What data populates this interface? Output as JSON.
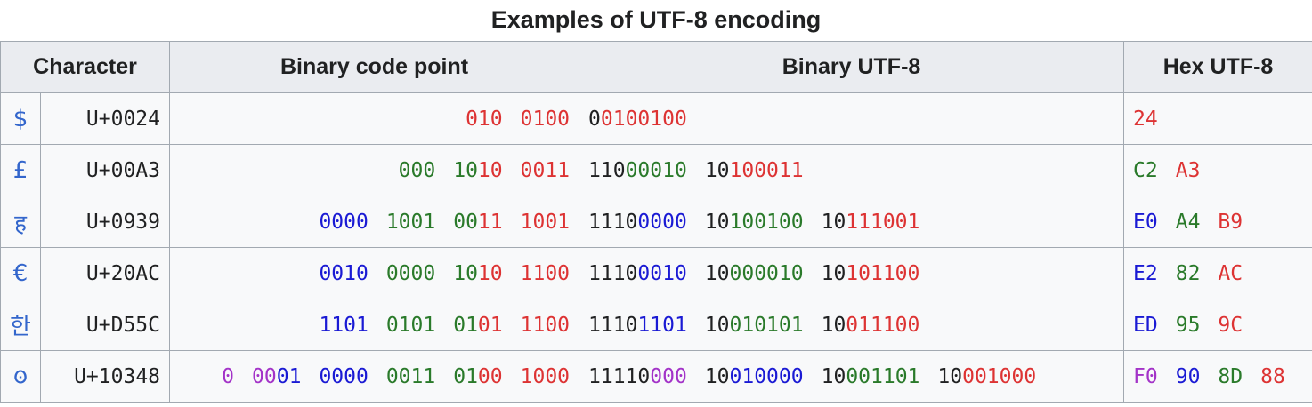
{
  "caption": "Examples of UTF-8 encoding",
  "headers": [
    "Character",
    "Binary code point",
    "Binary UTF-8",
    "Hex UTF-8"
  ],
  "colors": {
    "black": "#202122",
    "red": "#dd3333",
    "green": "#2a7a2a",
    "blue": "#1a1ad4",
    "purple": "#a333c8",
    "header_bg": "#eaecf0",
    "cell_bg": "#f8f9fa",
    "border": "#a2a9b1",
    "link": "#3366cc"
  },
  "rows": [
    {
      "char": "$",
      "codepoint": "U+0024",
      "binary_code_point": [
        [
          [
            "red",
            "010"
          ]
        ],
        [
          [
            "red",
            "0100"
          ]
        ]
      ],
      "binary_utf8": [
        [
          [
            "black",
            "0"
          ],
          [
            "red",
            "0100100"
          ]
        ]
      ],
      "hex_utf8": [
        [
          [
            "red",
            "24"
          ]
        ]
      ]
    },
    {
      "char": "£",
      "codepoint": "U+00A3",
      "binary_code_point": [
        [
          [
            "green",
            "000"
          ]
        ],
        [
          [
            "green",
            "10"
          ],
          [
            "red",
            "10"
          ]
        ],
        [
          [
            "red",
            "0011"
          ]
        ]
      ],
      "binary_utf8": [
        [
          [
            "black",
            "110"
          ],
          [
            "green",
            "00010"
          ]
        ],
        [
          [
            "black",
            "10"
          ],
          [
            "red",
            "100011"
          ]
        ]
      ],
      "hex_utf8": [
        [
          [
            "green",
            "C2"
          ]
        ],
        [
          [
            "red",
            "A3"
          ]
        ]
      ]
    },
    {
      "char": "ह",
      "codepoint": "U+0939",
      "binary_code_point": [
        [
          [
            "blue",
            "0000"
          ]
        ],
        [
          [
            "green",
            "1001"
          ]
        ],
        [
          [
            "green",
            "00"
          ],
          [
            "red",
            "11"
          ]
        ],
        [
          [
            "red",
            "1001"
          ]
        ]
      ],
      "binary_utf8": [
        [
          [
            "black",
            "1110"
          ],
          [
            "blue",
            "0000"
          ]
        ],
        [
          [
            "black",
            "10"
          ],
          [
            "green",
            "100100"
          ]
        ],
        [
          [
            "black",
            "10"
          ],
          [
            "red",
            "111001"
          ]
        ]
      ],
      "hex_utf8": [
        [
          [
            "blue",
            "E0"
          ]
        ],
        [
          [
            "green",
            "A4"
          ]
        ],
        [
          [
            "red",
            "B9"
          ]
        ]
      ]
    },
    {
      "char": "€",
      "codepoint": "U+20AC",
      "binary_code_point": [
        [
          [
            "blue",
            "0010"
          ]
        ],
        [
          [
            "green",
            "0000"
          ]
        ],
        [
          [
            "green",
            "10"
          ],
          [
            "red",
            "10"
          ]
        ],
        [
          [
            "red",
            "1100"
          ]
        ]
      ],
      "binary_utf8": [
        [
          [
            "black",
            "1110"
          ],
          [
            "blue",
            "0010"
          ]
        ],
        [
          [
            "black",
            "10"
          ],
          [
            "green",
            "000010"
          ]
        ],
        [
          [
            "black",
            "10"
          ],
          [
            "red",
            "101100"
          ]
        ]
      ],
      "hex_utf8": [
        [
          [
            "blue",
            "E2"
          ]
        ],
        [
          [
            "green",
            "82"
          ]
        ],
        [
          [
            "red",
            "AC"
          ]
        ]
      ]
    },
    {
      "char": "한",
      "codepoint": "U+D55C",
      "binary_code_point": [
        [
          [
            "blue",
            "1101"
          ]
        ],
        [
          [
            "green",
            "0101"
          ]
        ],
        [
          [
            "green",
            "01"
          ],
          [
            "red",
            "01"
          ]
        ],
        [
          [
            "red",
            "1100"
          ]
        ]
      ],
      "binary_utf8": [
        [
          [
            "black",
            "1110"
          ],
          [
            "blue",
            "1101"
          ]
        ],
        [
          [
            "black",
            "10"
          ],
          [
            "green",
            "010101"
          ]
        ],
        [
          [
            "black",
            "10"
          ],
          [
            "red",
            "011100"
          ]
        ]
      ],
      "hex_utf8": [
        [
          [
            "blue",
            "ED"
          ]
        ],
        [
          [
            "green",
            "95"
          ]
        ],
        [
          [
            "red",
            "9C"
          ]
        ]
      ]
    },
    {
      "char": "𐍈",
      "codepoint": "U+10348",
      "binary_code_point": [
        [
          [
            "purple",
            "0"
          ]
        ],
        [
          [
            "purple",
            "00"
          ],
          [
            "blue",
            "01"
          ]
        ],
        [
          [
            "blue",
            "0000"
          ]
        ],
        [
          [
            "green",
            "0011"
          ]
        ],
        [
          [
            "green",
            "01"
          ],
          [
            "red",
            "00"
          ]
        ],
        [
          [
            "red",
            "1000"
          ]
        ]
      ],
      "binary_utf8": [
        [
          [
            "black",
            "11110"
          ],
          [
            "purple",
            "000"
          ]
        ],
        [
          [
            "black",
            "10"
          ],
          [
            "blue",
            "010000"
          ]
        ],
        [
          [
            "black",
            "10"
          ],
          [
            "green",
            "001101"
          ]
        ],
        [
          [
            "black",
            "10"
          ],
          [
            "red",
            "001000"
          ]
        ]
      ],
      "hex_utf8": [
        [
          [
            "purple",
            "F0"
          ]
        ],
        [
          [
            "blue",
            "90"
          ]
        ],
        [
          [
            "green",
            "8D"
          ]
        ],
        [
          [
            "red",
            "88"
          ]
        ]
      ]
    }
  ]
}
